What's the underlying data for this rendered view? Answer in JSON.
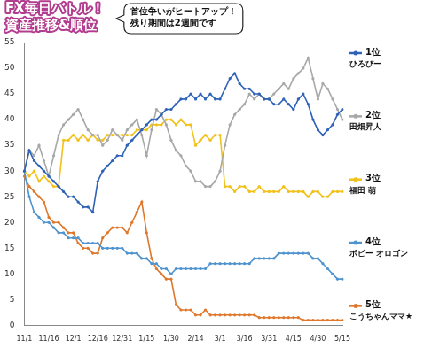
{
  "chart_data": {
    "type": "line",
    "title": "FX毎日バトル！資産推移&順位",
    "annotations": [
      "首位争いがヒートアップ！残り期間は2週間です"
    ],
    "categories": [
      "11/1",
      null,
      null,
      null,
      null,
      "11/16",
      null,
      null,
      null,
      null,
      "12/1",
      null,
      null,
      null,
      null,
      "12/16",
      null,
      null,
      null,
      null,
      "12/31",
      null,
      null,
      null,
      null,
      "1/15",
      null,
      null,
      null,
      null,
      "1/30",
      null,
      null,
      null,
      null,
      "2/14",
      null,
      null,
      null,
      null,
      "3/1",
      null,
      null,
      null,
      null,
      "3/16",
      null,
      null,
      null,
      null,
      "3/31",
      null,
      null,
      null,
      null,
      "4/15",
      null,
      null,
      null,
      null,
      "4/30",
      null,
      null,
      null,
      null,
      "5/15"
    ],
    "series": [
      {
        "name": "1位 ひろぴー",
        "color": "#2f63b8",
        "values": [
          30,
          34,
          32,
          31,
          30,
          29,
          28,
          27,
          26,
          25,
          25,
          24,
          23,
          23,
          22,
          28,
          30,
          31,
          32,
          33,
          33,
          35,
          36,
          37,
          38,
          39,
          40,
          40,
          41,
          42,
          42,
          43,
          44,
          44,
          45,
          44,
          45,
          44,
          45,
          44,
          44,
          46,
          48,
          49,
          47,
          46,
          46,
          45,
          45,
          44,
          44,
          43,
          43,
          44,
          43,
          42,
          44,
          45,
          43,
          40,
          38,
          37,
          38,
          39,
          41,
          42
        ]
      },
      {
        "name": "2位 田畑昇人",
        "color": "#a8a8a8",
        "values": [
          30,
          34,
          33,
          35,
          32,
          29,
          33,
          37,
          39,
          40,
          41,
          42,
          40,
          38,
          37,
          37,
          35,
          36,
          38,
          37,
          36,
          38,
          39,
          40,
          37,
          33,
          38,
          42,
          41,
          39,
          36,
          34,
          33,
          31,
          30,
          28,
          28,
          27,
          27,
          28,
          30,
          35,
          39,
          41,
          42,
          43,
          45,
          44,
          45,
          44,
          44,
          45,
          46,
          47,
          46,
          48,
          49,
          50,
          52,
          48,
          44,
          47,
          46,
          44,
          42,
          40
        ]
      },
      {
        "name": "3位 福田 萌",
        "color": "#f2c11a",
        "values": [
          30,
          29,
          30,
          28,
          29,
          28,
          27,
          27,
          36,
          36,
          37,
          36,
          37,
          36,
          37,
          36,
          36,
          37,
          37,
          37,
          37,
          37,
          37,
          38,
          38,
          38,
          39,
          39,
          39,
          40,
          40,
          39,
          40,
          39,
          39,
          35,
          36,
          37,
          36,
          37,
          37,
          27,
          27,
          26,
          27,
          27,
          26,
          26,
          27,
          26,
          26,
          26,
          26,
          27,
          26,
          26,
          26,
          26,
          25,
          26,
          26,
          25,
          25,
          26,
          26,
          26
        ]
      },
      {
        "name": "4位 ボビー オロゴン",
        "color": "#4f94cf",
        "values": [
          30,
          25,
          22,
          21,
          20,
          20,
          19,
          18,
          18,
          17,
          17,
          17,
          16,
          16,
          16,
          16,
          15,
          15,
          15,
          15,
          15,
          14,
          14,
          14,
          13,
          13,
          12,
          12,
          11,
          11,
          10,
          11,
          11,
          11,
          11,
          11,
          11,
          11,
          12,
          12,
          12,
          12,
          12,
          12,
          12,
          12,
          12,
          13,
          13,
          13,
          13,
          13,
          14,
          14,
          14,
          14,
          14,
          14,
          14,
          13,
          13,
          12,
          11,
          10,
          9,
          9
        ]
      },
      {
        "name": "5位 こうちゃんママ★",
        "color": "#e0782c",
        "values": [
          29,
          27,
          26,
          25,
          24,
          21,
          20,
          20,
          19,
          18,
          18,
          16,
          15,
          15,
          14,
          14,
          17,
          18,
          19,
          19,
          19,
          18,
          20,
          22,
          24,
          18,
          13,
          11,
          10,
          9,
          9,
          4,
          3,
          3,
          3,
          2,
          2,
          3,
          2,
          2,
          2,
          2,
          2,
          2,
          2,
          2,
          2,
          2,
          1.5,
          1.5,
          1.5,
          1.5,
          1.5,
          1.5,
          1.5,
          1.5,
          1.5,
          1,
          1,
          1,
          1,
          1,
          1,
          1,
          1,
          1
        ]
      }
    ],
    "ylim": [
      0,
      55
    ],
    "yticks": [
      0,
      5,
      10,
      15,
      20,
      25,
      30,
      35,
      40,
      45,
      50,
      55
    ],
    "grid": false,
    "marker": "circle"
  }
}
